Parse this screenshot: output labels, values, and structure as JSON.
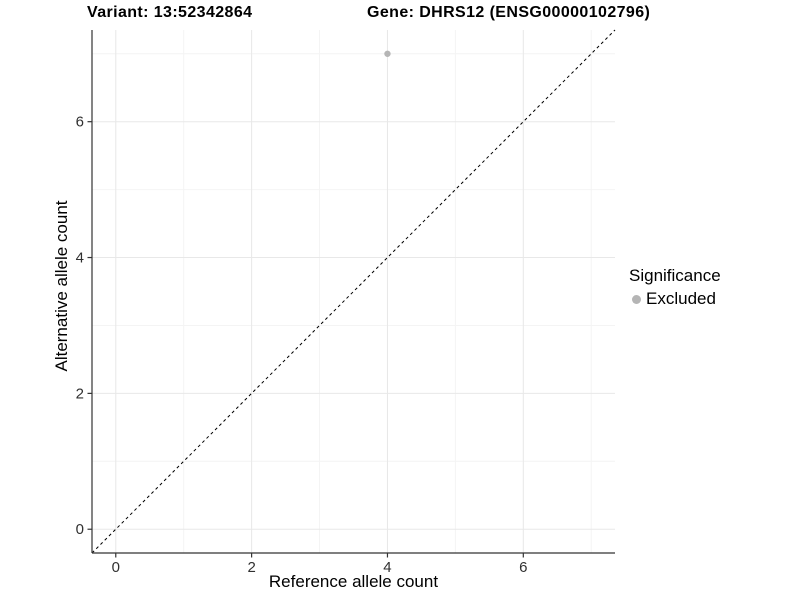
{
  "figure": {
    "title_left": "Variant: 13:52342864",
    "title_right": "Gene: DHRS12 (ENSG00000102796)"
  },
  "legend": {
    "title": "Significance",
    "items": [
      {
        "label": "Excluded",
        "color": "#b5b5b5"
      }
    ]
  },
  "chart_data": {
    "type": "scatter",
    "xlabel": "Reference allele count",
    "ylabel": "Alternative allele count",
    "xlim": [
      -0.35,
      7.35
    ],
    "ylim": [
      -0.35,
      7.35
    ],
    "x_ticks": [
      0,
      2,
      4,
      6
    ],
    "y_ticks": [
      0,
      2,
      4,
      6
    ],
    "x_minor_ticks": [
      1,
      3,
      5,
      7
    ],
    "y_minor_ticks": [
      1,
      3,
      5,
      7
    ],
    "grid": true,
    "legend_position": "right",
    "series": [
      {
        "name": "Excluded",
        "color": "#b5b5b5",
        "points": [
          {
            "x": 4,
            "y": 7
          }
        ]
      }
    ],
    "reference_line": {
      "type": "identity",
      "equation": "y = x",
      "style": "dashed",
      "color": "#000000"
    }
  },
  "colors": {
    "background": "#ffffff",
    "grid_major": "#e8e8e8",
    "grid_minor": "#f4f4f4",
    "axis_line": "#333333",
    "tick_mark": "#333333",
    "tick_label": "#303030",
    "title": "#000000",
    "point": "#b5b5b5"
  }
}
